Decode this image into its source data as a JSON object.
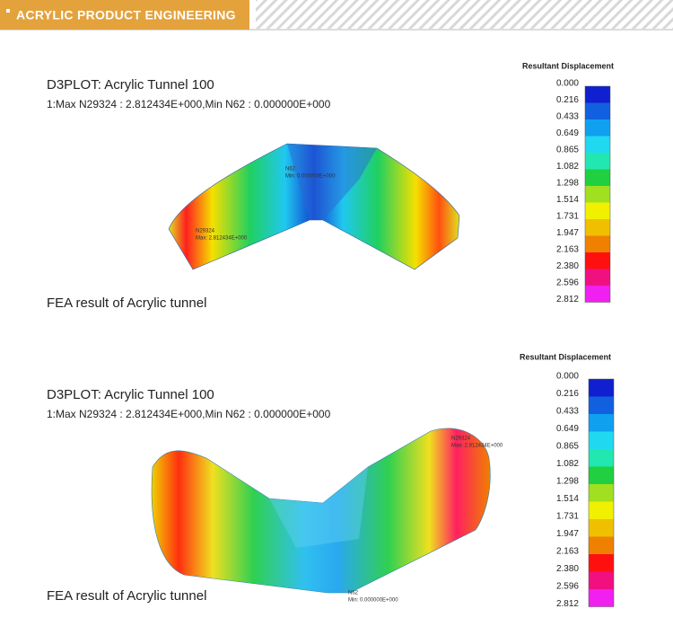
{
  "header": {
    "title": "ACRYLIC PRODUCT ENGINEERING"
  },
  "panels": [
    {
      "title": "D3PLOT: Acrylic Tunnel 100",
      "subtitle": "1:Max N29324 : 2.812434E+000,Min N62 : 0.000000E+000",
      "annotations": [
        {
          "node": "N62",
          "text": "Min: 0.000000E+000"
        },
        {
          "node": "N29324",
          "text": "Max: 2.812434E+000"
        }
      ],
      "caption": "FEA result of Acrylic tunnel",
      "legend": {
        "title": "Resultant Displacement",
        "labels": [
          "0.000",
          "0.216",
          "0.433",
          "0.649",
          "0.865",
          "1.082",
          "1.298",
          "1.514",
          "1.731",
          "1.947",
          "2.163",
          "2.380",
          "2.596",
          "2.812"
        ]
      }
    },
    {
      "title": "D3PLOT: Acrylic Tunnel 100",
      "subtitle": "1:Max N29324 : 2.812434E+000,Min N62 : 0.000000E+000",
      "annotations": [
        {
          "node": "N29324",
          "text": "Max: 2.812434E+000"
        },
        {
          "node": "N62",
          "text": "Min: 0.000000E+000"
        }
      ],
      "caption": "FEA result of Acrylic tunnel",
      "legend": {
        "title": "Resultant Displacement",
        "labels": [
          "0.000",
          "0.216",
          "0.433",
          "0.649",
          "0.865",
          "1.082",
          "1.298",
          "1.514",
          "1.731",
          "1.947",
          "2.163",
          "2.380",
          "2.596",
          "2.812"
        ]
      }
    }
  ]
}
